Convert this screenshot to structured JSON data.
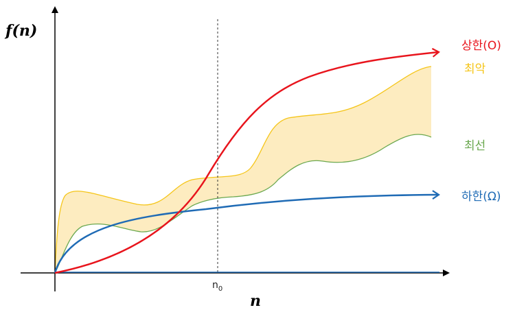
{
  "axes": {
    "y_label": "f(n)",
    "x_label": "n",
    "marker_label_base": "n",
    "marker_label_sub": "0"
  },
  "curves": {
    "upper": {
      "label": "상한(O)",
      "color": "#e8141c"
    },
    "worst": {
      "label": "최악",
      "color": "#f5c518",
      "fill": "#fdecc0"
    },
    "best": {
      "label": "최선",
      "color": "#6aa84f"
    },
    "lower": {
      "label": "하한(Ω)",
      "color": "#1f6bb5"
    }
  }
}
